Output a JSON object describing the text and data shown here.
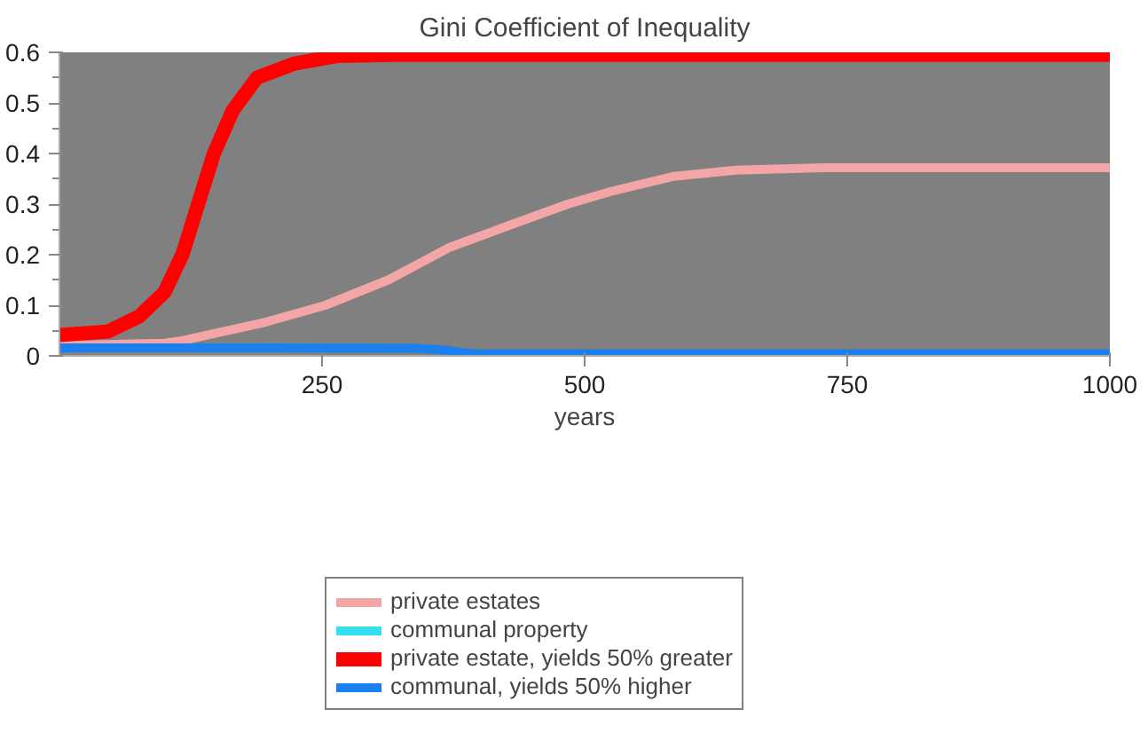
{
  "chart_data": {
    "type": "line",
    "title": "Gini Coefficient of Inequality",
    "xlabel": "years",
    "xlim": [
      0,
      1000
    ],
    "ylim": [
      0,
      0.6
    ],
    "xticks": [
      250,
      500,
      750,
      1000
    ],
    "yticks": [
      0,
      0.1,
      0.2,
      0.3,
      0.4,
      0.5,
      0.6
    ],
    "grid": false,
    "legend": "bottom",
    "marker": "none",
    "line_style": "solid",
    "series": [
      {
        "name": "private estates",
        "color": "#f4a6a6",
        "x": [
          0,
          100,
          117,
          197,
          253,
          313,
          372,
          431,
          484,
          525,
          585,
          644,
          727,
          800,
          900,
          1000
        ],
        "values": [
          0.02,
          0.025,
          0.03,
          0.067,
          0.1,
          0.15,
          0.215,
          0.26,
          0.3,
          0.325,
          0.355,
          0.367,
          0.372,
          0.372,
          0.372,
          0.372
        ]
      },
      {
        "name": "communal property",
        "color": "#33e0f0",
        "values": [
          null
        ]
      },
      {
        "name": "private estate, yields 50% greater",
        "color": "#ff0000",
        "x": [
          0,
          46,
          76,
          100,
          117,
          132,
          147,
          165,
          188,
          224,
          265,
          320,
          500,
          750,
          1000
        ],
        "values": [
          0.041,
          0.048,
          0.078,
          0.126,
          0.2,
          0.3,
          0.4,
          0.485,
          0.55,
          0.578,
          0.593,
          0.595,
          0.595,
          0.595,
          0.595
        ]
      },
      {
        "name": "communal, yields 50% higher",
        "color": "#1a80f0",
        "x": [
          0,
          200,
          340,
          365,
          385,
          400,
          500,
          750,
          1000
        ],
        "values": [
          0.016,
          0.016,
          0.015,
          0.012,
          0.006,
          0.004,
          0.004,
          0.004,
          0.004
        ]
      }
    ]
  }
}
